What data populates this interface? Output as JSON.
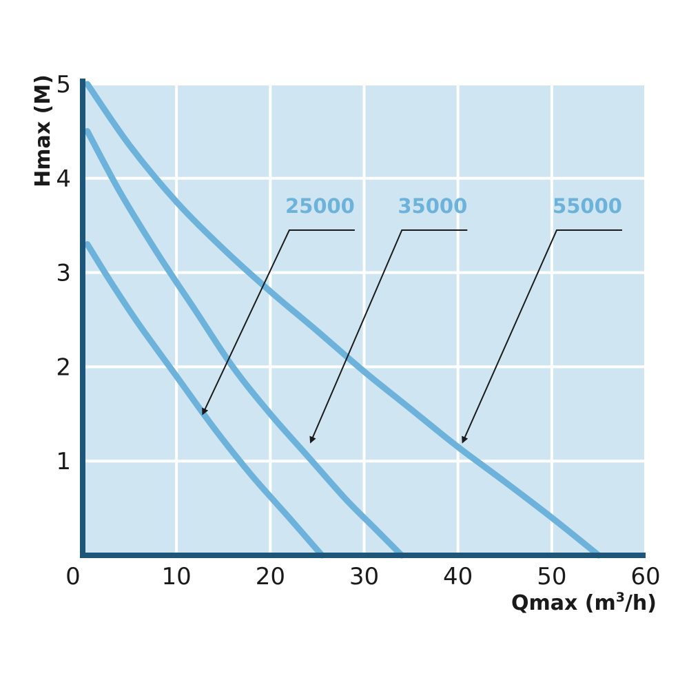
{
  "chart_data": {
    "type": "line",
    "title": "",
    "xlabel": "Qmax (m",
    "xlabel_sup": "3",
    "xlabel_suffix": "/h)",
    "ylabel": "Hmax (M)",
    "xlim": [
      0,
      60
    ],
    "ylim": [
      0,
      5
    ],
    "x_ticks": [
      "0",
      "10",
      "20",
      "30",
      "40",
      "50",
      "60"
    ],
    "y_ticks": [
      "1",
      "2",
      "3",
      "4",
      "5"
    ],
    "grid": true,
    "legend": "none",
    "colors": {
      "background": "#cfe6f2",
      "grid": "#ffffff",
      "axis": "#1d5679",
      "series": "#6cb2db",
      "annotation": "#1a1a1a"
    },
    "series": [
      {
        "name": "25000",
        "points": [
          [
            0.5,
            3.3
          ],
          [
            3,
            2.9
          ],
          [
            6,
            2.45
          ],
          [
            10,
            1.9
          ],
          [
            14,
            1.35
          ],
          [
            18,
            0.85
          ],
          [
            22,
            0.4
          ],
          [
            25.5,
            0.0
          ]
        ],
        "arrow_target": [
          12.8,
          1.5
        ],
        "label_at": [
          29,
          3.45
        ]
      },
      {
        "name": "35000",
        "points": [
          [
            0.5,
            4.5
          ],
          [
            4,
            3.85
          ],
          [
            8,
            3.2
          ],
          [
            12,
            2.6
          ],
          [
            16,
            2.0
          ],
          [
            20,
            1.5
          ],
          [
            24,
            1.05
          ],
          [
            28,
            0.6
          ],
          [
            31,
            0.3
          ],
          [
            34,
            0.0
          ]
        ],
        "arrow_target": [
          24.3,
          1.2
        ],
        "label_at": [
          41,
          3.45
        ]
      },
      {
        "name": "55000",
        "points": [
          [
            0.5,
            5.0
          ],
          [
            5,
            4.35
          ],
          [
            10,
            3.75
          ],
          [
            15,
            3.25
          ],
          [
            20,
            2.8
          ],
          [
            25,
            2.38
          ],
          [
            30,
            1.95
          ],
          [
            35,
            1.55
          ],
          [
            40,
            1.15
          ],
          [
            45,
            0.78
          ],
          [
            50,
            0.4
          ],
          [
            55,
            0.0
          ]
        ],
        "arrow_target": [
          40.5,
          1.2
        ],
        "label_at": [
          57.5,
          3.45
        ]
      }
    ]
  }
}
